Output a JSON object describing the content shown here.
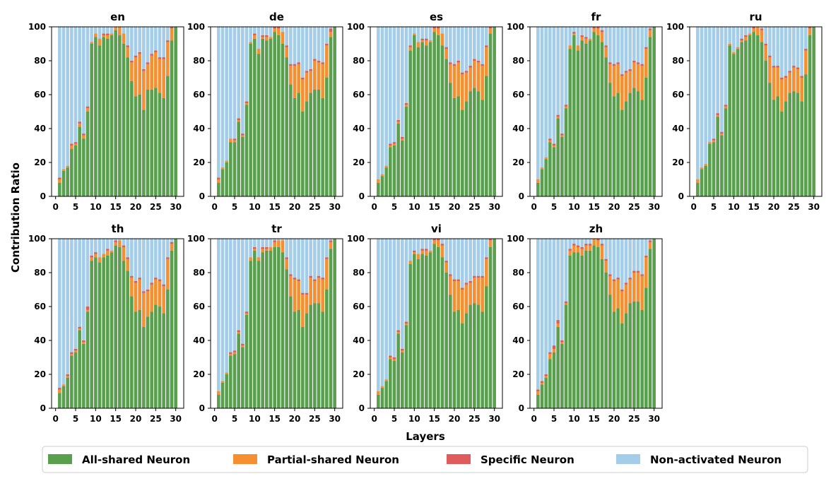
{
  "ylabel": "Contribution Ratio",
  "xlabel": "Layers",
  "legend": [
    {
      "key": "all",
      "label": "All-shared Neuron",
      "color": "#5aa04c"
    },
    {
      "key": "partial",
      "label": "Partial-shared Neuron",
      "color": "#f58f2f"
    },
    {
      "key": "specific",
      "label": "Specific Neuron",
      "color": "#e05c5c"
    },
    {
      "key": "non",
      "label": "Non-activated Neuron",
      "color": "#a3cde8"
    }
  ],
  "x_ticks": [
    "0",
    "5",
    "10",
    "15",
    "20",
    "25",
    "30"
  ],
  "y_ticks": [
    "0",
    "20",
    "40",
    "60",
    "80",
    "100"
  ],
  "chart_data": [
    {
      "type": "bar",
      "stacked": true,
      "title": "en",
      "x": [
        1,
        2,
        3,
        4,
        5,
        6,
        7,
        8,
        9,
        10,
        11,
        12,
        13,
        14,
        15,
        16,
        17,
        18,
        19,
        20,
        21,
        22,
        23,
        24,
        25,
        26,
        27,
        28,
        29,
        30
      ],
      "ylim": [
        0,
        100
      ],
      "xlim": [
        -1,
        32
      ],
      "all": [
        8,
        15,
        17,
        28,
        30,
        41,
        34,
        50,
        90,
        94,
        89,
        94,
        93,
        95,
        98,
        95,
        90,
        82,
        68,
        59,
        60,
        51,
        63,
        63,
        64,
        61,
        58,
        71,
        92,
        100
      ],
      "partial": [
        2,
        1,
        1,
        2,
        1,
        2,
        2,
        2,
        1,
        2,
        4,
        1,
        2,
        1,
        2,
        5,
        6,
        6,
        11,
        23,
        24,
        23,
        15,
        20,
        21,
        20,
        23,
        20,
        7,
        0
      ],
      "specific": [
        1,
        0,
        0,
        1,
        1,
        1,
        1,
        1,
        0,
        0,
        0,
        1,
        1,
        0,
        0,
        0,
        0,
        1,
        1,
        1,
        1,
        1,
        1,
        1,
        1,
        1,
        1,
        1,
        1,
        0
      ]
    },
    {
      "type": "bar",
      "stacked": true,
      "title": "de",
      "x": [
        1,
        2,
        3,
        4,
        5,
        6,
        7,
        8,
        9,
        10,
        11,
        12,
        13,
        14,
        15,
        16,
        17,
        18,
        19,
        20,
        21,
        22,
        23,
        24,
        25,
        26,
        27,
        28,
        29,
        30
      ],
      "ylim": [
        0,
        100
      ],
      "xlim": [
        -1,
        32
      ],
      "all": [
        8,
        16,
        20,
        32,
        32,
        44,
        35,
        54,
        90,
        93,
        84,
        93,
        92,
        93,
        97,
        95,
        90,
        82,
        66,
        58,
        61,
        50,
        56,
        61,
        63,
        63,
        58,
        70,
        94,
        100
      ],
      "partial": [
        2,
        1,
        1,
        2,
        1,
        1,
        1,
        1,
        1,
        2,
        3,
        1,
        2,
        1,
        2,
        4,
        7,
        6,
        11,
        19,
        17,
        19,
        17,
        13,
        17,
        16,
        20,
        19,
        3,
        0
      ],
      "specific": [
        1,
        0,
        0,
        0,
        1,
        1,
        1,
        1,
        0,
        1,
        0,
        1,
        1,
        0,
        1,
        1,
        0,
        1,
        1,
        1,
        1,
        1,
        1,
        1,
        1,
        1,
        1,
        1,
        2,
        0
      ]
    },
    {
      "type": "bar",
      "stacked": true,
      "title": "es",
      "x": [
        1,
        2,
        3,
        4,
        5,
        6,
        7,
        8,
        9,
        10,
        11,
        12,
        13,
        14,
        15,
        16,
        17,
        18,
        19,
        20,
        21,
        22,
        23,
        24,
        25,
        26,
        27,
        28,
        29,
        30
      ],
      "ylim": [
        0,
        100
      ],
      "xlim": [
        -1,
        32
      ],
      "all": [
        8,
        12,
        17,
        29,
        30,
        43,
        33,
        53,
        86,
        95,
        88,
        91,
        89,
        91,
        97,
        95,
        89,
        81,
        67,
        58,
        59,
        51,
        56,
        62,
        64,
        62,
        57,
        71,
        96,
        100
      ],
      "partial": [
        2,
        1,
        1,
        1,
        1,
        1,
        1,
        1,
        2,
        1,
        3,
        1,
        3,
        1,
        2,
        4,
        7,
        6,
        11,
        19,
        20,
        21,
        17,
        14,
        16,
        17,
        20,
        17,
        3,
        0
      ],
      "specific": [
        0,
        0,
        0,
        1,
        1,
        1,
        1,
        1,
        1,
        0,
        0,
        1,
        1,
        0,
        1,
        1,
        0,
        1,
        1,
        1,
        1,
        1,
        1,
        1,
        1,
        1,
        1,
        1,
        1,
        0
      ]
    },
    {
      "type": "bar",
      "stacked": true,
      "title": "fr",
      "x": [
        1,
        2,
        3,
        4,
        5,
        6,
        7,
        8,
        9,
        10,
        11,
        12,
        13,
        14,
        15,
        16,
        17,
        18,
        19,
        20,
        21,
        22,
        23,
        24,
        25,
        26,
        27,
        28,
        29,
        30
      ],
      "ylim": [
        0,
        100
      ],
      "xlim": [
        -1,
        32
      ],
      "all": [
        8,
        16,
        22,
        32,
        29,
        46,
        35,
        52,
        87,
        95,
        86,
        92,
        90,
        92,
        97,
        95,
        91,
        82,
        67,
        59,
        61,
        51,
        56,
        61,
        64,
        62,
        57,
        70,
        94,
        100
      ],
      "partial": [
        2,
        1,
        1,
        1,
        1,
        1,
        1,
        1,
        2,
        1,
        3,
        2,
        3,
        1,
        2,
        4,
        6,
        6,
        11,
        18,
        17,
        20,
        17,
        13,
        15,
        16,
        20,
        17,
        4,
        0
      ],
      "specific": [
        0,
        0,
        0,
        1,
        1,
        1,
        1,
        1,
        0,
        1,
        0,
        1,
        1,
        0,
        1,
        1,
        1,
        1,
        1,
        1,
        1,
        1,
        1,
        1,
        1,
        1,
        1,
        1,
        1,
        0
      ]
    },
    {
      "type": "bar",
      "stacked": true,
      "title": "ru",
      "x": [
        1,
        2,
        3,
        4,
        5,
        6,
        7,
        8,
        9,
        10,
        11,
        12,
        13,
        14,
        15,
        16,
        17,
        18,
        19,
        20,
        21,
        22,
        23,
        24,
        25,
        26,
        27,
        28,
        29,
        30
      ],
      "ylim": [
        0,
        100
      ],
      "xlim": [
        -1,
        32
      ],
      "all": [
        8,
        16,
        18,
        31,
        32,
        47,
        36,
        52,
        89,
        84,
        87,
        91,
        92,
        95,
        97,
        95,
        91,
        80,
        67,
        57,
        59,
        50,
        56,
        61,
        62,
        61,
        56,
        72,
        95,
        100
      ],
      "partial": [
        2,
        1,
        1,
        1,
        1,
        1,
        1,
        1,
        1,
        1,
        1,
        1,
        2,
        1,
        2,
        5,
        7,
        9,
        15,
        19,
        17,
        19,
        14,
        12,
        14,
        14,
        14,
        14,
        4,
        0
      ],
      "specific": [
        0,
        0,
        0,
        0,
        1,
        1,
        1,
        1,
        0,
        0,
        0,
        1,
        1,
        0,
        1,
        1,
        1,
        1,
        1,
        1,
        1,
        1,
        1,
        1,
        1,
        1,
        1,
        1,
        1,
        0
      ]
    },
    {
      "type": "bar",
      "stacked": true,
      "title": "th",
      "x": [
        1,
        2,
        3,
        4,
        5,
        6,
        7,
        8,
        9,
        10,
        11,
        12,
        13,
        14,
        15,
        16,
        17,
        18,
        19,
        20,
        21,
        22,
        23,
        24,
        25,
        26,
        27,
        28,
        29,
        30
      ],
      "ylim": [
        0,
        100
      ],
      "xlim": [
        -1,
        32
      ],
      "all": [
        9,
        13,
        18,
        31,
        33,
        46,
        38,
        57,
        87,
        89,
        86,
        89,
        90,
        92,
        96,
        95,
        87,
        81,
        66,
        57,
        58,
        48,
        54,
        57,
        61,
        60,
        56,
        70,
        93,
        100
      ],
      "partial": [
        2,
        1,
        1,
        1,
        1,
        1,
        1,
        1,
        2,
        2,
        3,
        2,
        3,
        1,
        2,
        4,
        8,
        7,
        11,
        17,
        18,
        20,
        15,
        16,
        15,
        15,
        16,
        18,
        4,
        0
      ],
      "specific": [
        1,
        0,
        1,
        1,
        1,
        1,
        1,
        2,
        1,
        1,
        0,
        0,
        1,
        0,
        1,
        0,
        1,
        1,
        1,
        1,
        1,
        1,
        1,
        1,
        1,
        1,
        1,
        1,
        1,
        0
      ]
    },
    {
      "type": "bar",
      "stacked": true,
      "title": "tr",
      "x": [
        1,
        2,
        3,
        4,
        5,
        6,
        7,
        8,
        9,
        10,
        11,
        12,
        13,
        14,
        15,
        16,
        17,
        18,
        19,
        20,
        21,
        22,
        23,
        24,
        25,
        26,
        27,
        28,
        29,
        30
      ],
      "ylim": [
        0,
        100
      ],
      "xlim": [
        -1,
        32
      ],
      "all": [
        8,
        15,
        20,
        31,
        32,
        44,
        36,
        55,
        87,
        93,
        87,
        92,
        93,
        93,
        95,
        95,
        92,
        82,
        66,
        57,
        58,
        48,
        56,
        61,
        62,
        62,
        57,
        70,
        94,
        100
      ],
      "partial": [
        2,
        1,
        1,
        1,
        1,
        1,
        1,
        1,
        2,
        1,
        2,
        2,
        1,
        2,
        3,
        4,
        7,
        6,
        12,
        19,
        17,
        19,
        11,
        16,
        13,
        15,
        19,
        18,
        4,
        0
      ],
      "specific": [
        0,
        0,
        0,
        1,
        1,
        1,
        1,
        1,
        0,
        1,
        0,
        1,
        1,
        0,
        1,
        0,
        0,
        1,
        1,
        1,
        1,
        1,
        1,
        1,
        1,
        1,
        1,
        1,
        1,
        0
      ]
    },
    {
      "type": "bar",
      "stacked": true,
      "title": "vi",
      "x": [
        1,
        2,
        3,
        4,
        5,
        6,
        7,
        8,
        9,
        10,
        11,
        12,
        13,
        14,
        15,
        16,
        17,
        18,
        19,
        20,
        21,
        22,
        23,
        24,
        25,
        26,
        27,
        28,
        29,
        30
      ],
      "ylim": [
        0,
        100
      ],
      "xlim": [
        -1,
        32
      ],
      "all": [
        8,
        12,
        16,
        29,
        28,
        44,
        33,
        49,
        85,
        91,
        88,
        91,
        90,
        92,
        97,
        95,
        89,
        80,
        67,
        57,
        58,
        50,
        56,
        61,
        62,
        61,
        57,
        72,
        95,
        100
      ],
      "partial": [
        2,
        1,
        1,
        1,
        1,
        1,
        1,
        1,
        2,
        1,
        3,
        2,
        3,
        1,
        2,
        4,
        7,
        6,
        11,
        18,
        17,
        20,
        17,
        13,
        15,
        16,
        20,
        16,
        4,
        0
      ],
      "specific": [
        0,
        0,
        0,
        1,
        1,
        1,
        1,
        1,
        0,
        1,
        0,
        1,
        1,
        0,
        1,
        1,
        1,
        1,
        1,
        1,
        1,
        1,
        1,
        1,
        1,
        1,
        1,
        1,
        1,
        0
      ]
    },
    {
      "type": "bar",
      "stacked": true,
      "title": "zh",
      "x": [
        1,
        2,
        3,
        4,
        5,
        6,
        7,
        8,
        9,
        10,
        11,
        12,
        13,
        14,
        15,
        16,
        17,
        18,
        19,
        20,
        21,
        22,
        23,
        24,
        25,
        26,
        27,
        28,
        29,
        30
      ],
      "ylim": [
        0,
        100
      ],
      "xlim": [
        -1,
        32
      ],
      "all": [
        8,
        14,
        18,
        29,
        33,
        48,
        38,
        61,
        90,
        92,
        92,
        90,
        93,
        93,
        96,
        95,
        88,
        80,
        67,
        57,
        59,
        50,
        56,
        62,
        63,
        63,
        58,
        71,
        94,
        100
      ],
      "partial": [
        2,
        1,
        1,
        3,
        2,
        2,
        1,
        1,
        3,
        4,
        3,
        4,
        3,
        3,
        4,
        4,
        8,
        7,
        11,
        18,
        17,
        19,
        17,
        14,
        17,
        17,
        20,
        18,
        4,
        0
      ],
      "specific": [
        1,
        1,
        1,
        1,
        2,
        2,
        1,
        1,
        1,
        1,
        1,
        1,
        1,
        1,
        1,
        1,
        1,
        1,
        1,
        1,
        1,
        1,
        1,
        1,
        1,
        1,
        1,
        1,
        1,
        0
      ]
    }
  ]
}
